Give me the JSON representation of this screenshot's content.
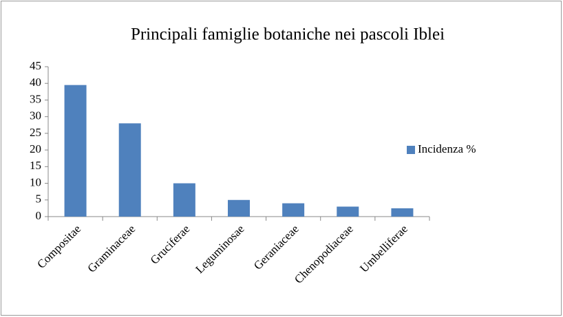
{
  "chart_data": {
    "type": "bar",
    "title": "Principali famiglie botaniche nei pascoli Iblei",
    "categories": [
      "Compositae",
      "Graminaceae",
      "Gruciferae",
      "Leguminosae",
      "Geraniaceae",
      "Chenopodiaceae",
      "Umbelliferae"
    ],
    "series": [
      {
        "name": "Incidenza %",
        "color": "#4f81bd",
        "values": [
          39.5,
          28,
          10,
          5,
          4,
          3,
          2.5
        ]
      }
    ],
    "ylim": [
      0,
      45
    ],
    "yticks": [
      0,
      5,
      10,
      15,
      20,
      25,
      30,
      35,
      40,
      45
    ],
    "grid": false,
    "legend": "right"
  }
}
